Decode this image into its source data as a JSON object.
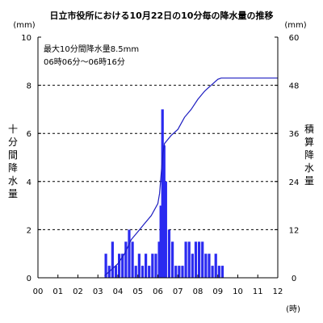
{
  "chart_data": {
    "type": "bar",
    "title": "日立市役所における10月22日の10分毎の降水量の推移",
    "annotation": {
      "line1": "最大10分間降水量8.5mm",
      "line2": "06時06分～06時16分"
    },
    "x_axis": {
      "ticks": [
        "00",
        "01",
        "02",
        "03",
        "04",
        "05",
        "06",
        "07",
        "08",
        "09",
        "10",
        "11",
        "12"
      ],
      "unit": "(時)",
      "range_hours": [
        0,
        12
      ]
    },
    "y_left": {
      "label": "十分間降水量",
      "unit": "(mm)",
      "ticks": [
        0,
        2,
        4,
        6,
        8,
        10
      ],
      "ylim": [
        0,
        10
      ]
    },
    "y_right": {
      "label": "積算降水量",
      "unit": "(mm)",
      "ticks": [
        0,
        12,
        24,
        36,
        48,
        60
      ],
      "ylim": [
        0,
        60
      ]
    },
    "grid": {
      "horizontal_dashed_at_left": [
        2,
        4,
        6,
        8
      ],
      "vertical_ticks_every_hour": true
    },
    "colors": {
      "bars": "#2a2af0",
      "line": "#1c1cc0",
      "axis": "#000000",
      "grid": "#000000"
    },
    "series": [
      {
        "name": "十分間降水量",
        "kind": "bar",
        "axis": "left",
        "points": [
          {
            "t": "03:20",
            "v": 1.0
          },
          {
            "t": "03:30",
            "v": 0.5
          },
          {
            "t": "03:40",
            "v": 1.5
          },
          {
            "t": "03:50",
            "v": 0.5
          },
          {
            "t": "04:00",
            "v": 1.0
          },
          {
            "t": "04:10",
            "v": 1.0
          },
          {
            "t": "04:20",
            "v": 1.5
          },
          {
            "t": "04:30",
            "v": 2.0
          },
          {
            "t": "04:40",
            "v": 1.5
          },
          {
            "t": "04:50",
            "v": 0.5
          },
          {
            "t": "05:00",
            "v": 1.0
          },
          {
            "t": "05:10",
            "v": 0.5
          },
          {
            "t": "05:20",
            "v": 1.0
          },
          {
            "t": "05:30",
            "v": 0.5
          },
          {
            "t": "05:40",
            "v": 1.0
          },
          {
            "t": "05:50",
            "v": 1.0
          },
          {
            "t": "06:00",
            "v": 1.5
          },
          {
            "t": "06:05",
            "v": 3.0
          },
          {
            "t": "06:10",
            "v": 7.0
          },
          {
            "t": "06:15",
            "v": 5.5
          },
          {
            "t": "06:20",
            "v": 4.0
          },
          {
            "t": "06:30",
            "v": 2.0
          },
          {
            "t": "06:40",
            "v": 1.5
          },
          {
            "t": "06:50",
            "v": 0.5
          },
          {
            "t": "07:00",
            "v": 0.5
          },
          {
            "t": "07:10",
            "v": 0.5
          },
          {
            "t": "07:20",
            "v": 1.5
          },
          {
            "t": "07:30",
            "v": 1.5
          },
          {
            "t": "07:40",
            "v": 1.0
          },
          {
            "t": "07:50",
            "v": 1.5
          },
          {
            "t": "08:00",
            "v": 1.5
          },
          {
            "t": "08:10",
            "v": 1.5
          },
          {
            "t": "08:20",
            "v": 1.0
          },
          {
            "t": "08:30",
            "v": 1.0
          },
          {
            "t": "08:40",
            "v": 0.5
          },
          {
            "t": "08:50",
            "v": 1.0
          },
          {
            "t": "09:00",
            "v": 0.5
          },
          {
            "t": "09:10",
            "v": 0.5
          }
        ]
      },
      {
        "name": "積算降水量",
        "kind": "line",
        "axis": "right",
        "points": [
          {
            "t": "03:20",
            "v": 0.5
          },
          {
            "t": "03:40",
            "v": 2
          },
          {
            "t": "04:00",
            "v": 3.5
          },
          {
            "t": "04:20",
            "v": 6
          },
          {
            "t": "04:40",
            "v": 9.5
          },
          {
            "t": "05:00",
            "v": 11.5
          },
          {
            "t": "05:20",
            "v": 13.5
          },
          {
            "t": "05:40",
            "v": 15.5
          },
          {
            "t": "06:00",
            "v": 18.5
          },
          {
            "t": "06:05",
            "v": 21
          },
          {
            "t": "06:10",
            "v": 26
          },
          {
            "t": "06:15",
            "v": 31
          },
          {
            "t": "06:20",
            "v": 33.5
          },
          {
            "t": "06:40",
            "v": 35.5
          },
          {
            "t": "07:00",
            "v": 37
          },
          {
            "t": "07:20",
            "v": 40
          },
          {
            "t": "07:40",
            "v": 42
          },
          {
            "t": "08:00",
            "v": 44.5
          },
          {
            "t": "08:20",
            "v": 46.5
          },
          {
            "t": "08:40",
            "v": 48
          },
          {
            "t": "09:00",
            "v": 49.5
          },
          {
            "t": "09:10",
            "v": 49.8
          },
          {
            "t": "10:00",
            "v": 49.8
          },
          {
            "t": "11:00",
            "v": 49.8
          },
          {
            "t": "12:00",
            "v": 49.8
          }
        ]
      }
    ]
  }
}
